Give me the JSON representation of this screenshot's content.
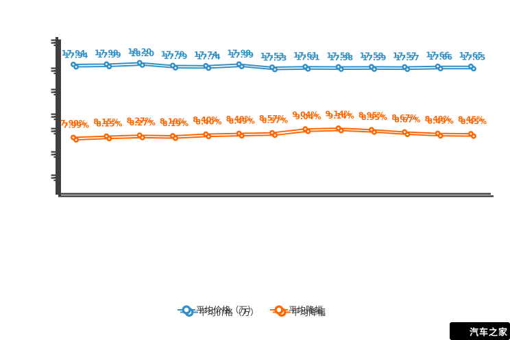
{
  "chart_data": {
    "type": "line",
    "series": [
      {
        "name": "平均价格（万）",
        "color": "#3190c8",
        "values": [
          17.94,
          17.99,
          18.2,
          17.79,
          17.74,
          17.99,
          17.53,
          17.61,
          17.58,
          17.59,
          17.57,
          17.66,
          17.65
        ],
        "labels": [
          "17.94",
          "17.99",
          "18.20",
          "17.79",
          "17.74",
          "17.99",
          "17.53",
          "17.61",
          "17.58",
          "17.59",
          "17.57",
          "17.66",
          "17.65"
        ]
      },
      {
        "name": "平均降幅",
        "color": "#ff6600",
        "values": [
          7.99,
          8.15,
          8.27,
          8.19,
          8.4,
          8.49,
          8.57,
          9.04,
          9.14,
          8.95,
          8.67,
          8.49,
          8.45
        ],
        "labels": [
          "7.99%",
          "8.15%",
          "8.27%",
          "8.19%",
          "8.40%",
          "8.49%",
          "8.57%",
          "9.04%",
          "9.14%",
          "8.95%",
          "8.67%",
          "8.49%",
          "8.45%"
        ]
      }
    ],
    "x_count": 13,
    "grid": false,
    "legend_position": "bottom"
  },
  "legend": {
    "items": [
      {
        "label": "平均价格（万）",
        "color": "#3190c8"
      },
      {
        "label": "平均降幅",
        "color": "#ff6600"
      }
    ]
  },
  "watermark": {
    "text": "汽车之家",
    "bg": "#000000",
    "fg": "#ffffff"
  },
  "colors": {
    "axis": "#3f3f3f",
    "background": "#ffffff",
    "legend_text": "#333333"
  }
}
